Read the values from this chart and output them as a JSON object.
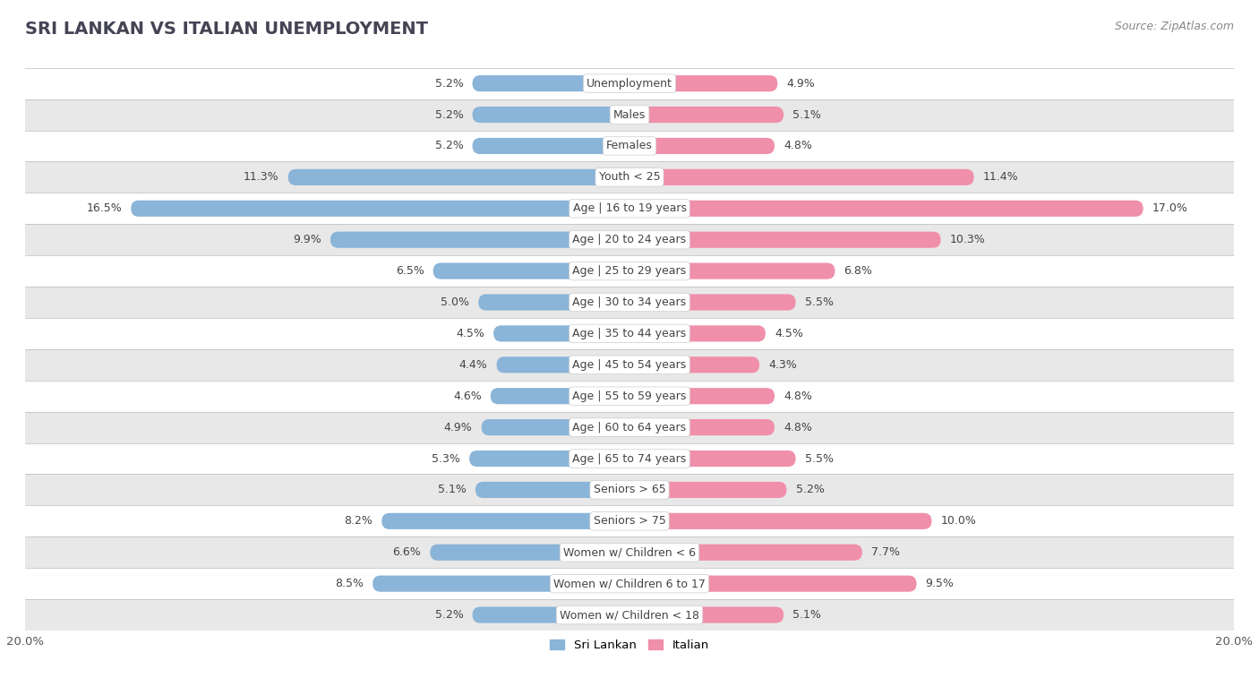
{
  "title": "SRI LANKAN VS ITALIAN UNEMPLOYMENT",
  "source": "Source: ZipAtlas.com",
  "categories": [
    "Unemployment",
    "Males",
    "Females",
    "Youth < 25",
    "Age | 16 to 19 years",
    "Age | 20 to 24 years",
    "Age | 25 to 29 years",
    "Age | 30 to 34 years",
    "Age | 35 to 44 years",
    "Age | 45 to 54 years",
    "Age | 55 to 59 years",
    "Age | 60 to 64 years",
    "Age | 65 to 74 years",
    "Seniors > 65",
    "Seniors > 75",
    "Women w/ Children < 6",
    "Women w/ Children 6 to 17",
    "Women w/ Children < 18"
  ],
  "sri_lankan": [
    5.2,
    5.2,
    5.2,
    11.3,
    16.5,
    9.9,
    6.5,
    5.0,
    4.5,
    4.4,
    4.6,
    4.9,
    5.3,
    5.1,
    8.2,
    6.6,
    8.5,
    5.2
  ],
  "italian": [
    4.9,
    5.1,
    4.8,
    11.4,
    17.0,
    10.3,
    6.8,
    5.5,
    4.5,
    4.3,
    4.8,
    4.8,
    5.5,
    5.2,
    10.0,
    7.7,
    9.5,
    5.1
  ],
  "sri_lankan_color": "#8ab4d8",
  "italian_color": "#f08faa",
  "sri_lankan_label": "Sri Lankan",
  "italian_label": "Italian",
  "axis_max": 20.0,
  "bg_white": "#ffffff",
  "bg_gray": "#e8e8e8",
  "title_fontsize": 14,
  "source_fontsize": 9,
  "label_fontsize": 9,
  "cat_fontsize": 9
}
